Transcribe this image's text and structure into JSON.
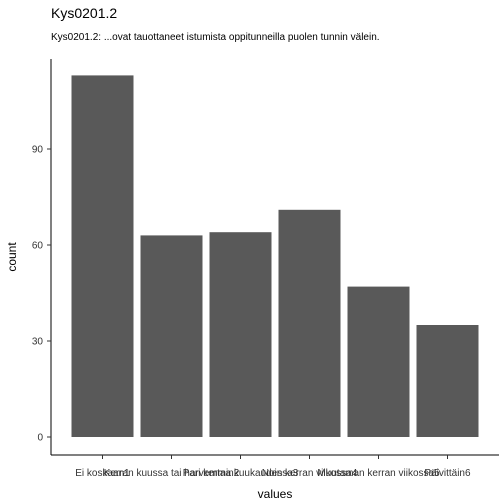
{
  "title": "Kys0201.2",
  "subtitle": "Kys0201.2: ...ovat tauottaneet istumista oppitunneilla puolen tunnin välein.",
  "chart_data": {
    "type": "bar",
    "categories": [
      "Ei koskaan1",
      "Kerran kuussa tai harvemmin2",
      "Pari kertaa kuukaudessa3",
      "Noin kerran viikossa4",
      "Muutaman kerran viikossa5",
      "Päivittäin6"
    ],
    "values": [
      113,
      63,
      64,
      71,
      47,
      35
    ],
    "xlabel": "values",
    "ylabel": "count",
    "ylim": [
      0,
      120
    ],
    "yticks": [
      0,
      30,
      60,
      90
    ],
    "bar_color": "#595959",
    "grid": false
  }
}
